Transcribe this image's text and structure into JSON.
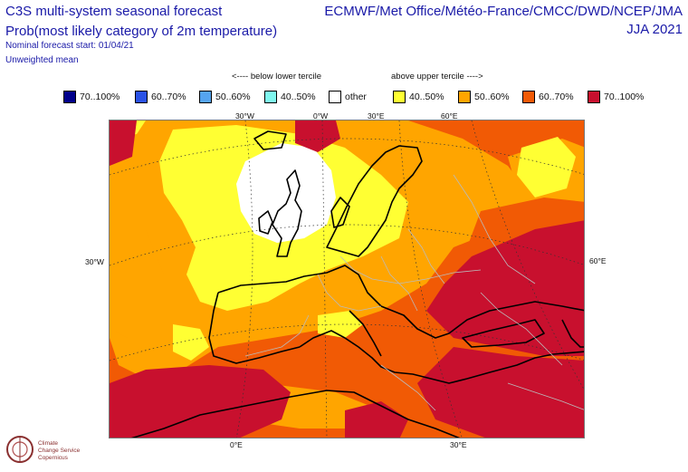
{
  "header": {
    "title": "C3S multi-system seasonal forecast",
    "subtitle": "Prob(most likely category of 2m temperature)",
    "start": "Nominal forecast start: 01/04/21",
    "mean": "Unweighted mean",
    "centres": "ECMWF/Met Office/Météo-France/CMCC/DWD/NCEP/JMA",
    "season": "JJA 2021"
  },
  "tercile": {
    "below": "<---- below lower tercile",
    "above": "above upper tercile ---->"
  },
  "legend": [
    {
      "label": "70..100%",
      "color": "#00008b"
    },
    {
      "label": "60..70%",
      "color": "#2a52e6"
    },
    {
      "label": "50..60%",
      "color": "#55a4ef"
    },
    {
      "label": "40..50%",
      "color": "#7ff7ef"
    },
    {
      "label": "other",
      "color": "#ffffff"
    },
    {
      "label": "40..50%",
      "color": "#ffff33"
    },
    {
      "label": "50..60%",
      "color": "#ffa500"
    },
    {
      "label": "60..70%",
      "color": "#f15a05"
    },
    {
      "label": "70..100%",
      "color": "#c8102e"
    }
  ],
  "grid_labels": {
    "top": [
      "30°W",
      "0°W",
      "30°E",
      "60°E"
    ],
    "left": "30°W",
    "right": "60°E",
    "bottom": [
      "0°E",
      "30°E"
    ]
  },
  "logo": {
    "line1": "Climate",
    "line2": "Change Service",
    "line3": "Copernicus"
  }
}
